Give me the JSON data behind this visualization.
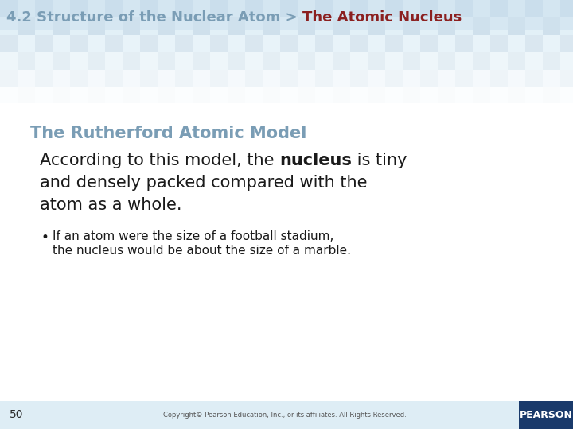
{
  "title_part1": "4.2 Structure of the Nuclear Atom > ",
  "title_part2": "The Atomic Nucleus",
  "title_color1": "#7a9db5",
  "title_color2": "#8b2020",
  "title_fontsize": 13,
  "section_title": "The Rutherford Atomic Model",
  "section_title_color": "#7a9db5",
  "section_title_fontsize": 15,
  "body_text_pre": "According to this model, the ",
  "body_text_bold": "nucleus",
  "body_text_post": " is tiny",
  "body_text_line2": "and densely packed compared with the",
  "body_text_line3": "atom as a whole.",
  "body_fontsize": 15,
  "body_color": "#1a1a1a",
  "bullet_text_line1": "If an atom were the size of a football stadium,",
  "bullet_text_line2": "the nucleus would be about the size of a marble.",
  "bullet_fontsize": 11,
  "bullet_color": "#1a1a1a",
  "page_number": "50",
  "copyright_text": "Copyright© Pearson Education, Inc., or its affiliates. All Rights Reserved.",
  "bg_color": "#ffffff",
  "header_tile1": "#c5dae8",
  "header_tile2": "#dcedf6",
  "header_overlay": "#cfe2ef",
  "footer_bg": "#deedf5",
  "pearson_bg": "#1a3a6b",
  "pearson_text": "#ffffff"
}
